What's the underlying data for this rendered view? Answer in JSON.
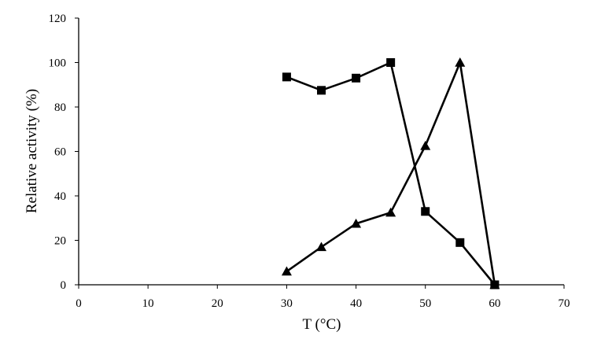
{
  "chart_data": {
    "type": "scatter",
    "title": "",
    "xlabel": "T (°C)",
    "ylabel": "Relative activity (%)",
    "xlim": [
      0,
      70
    ],
    "ylim": [
      0,
      120
    ],
    "xticks": [
      0,
      10,
      20,
      30,
      40,
      50,
      60,
      70
    ],
    "yticks": [
      0,
      20,
      40,
      60,
      80,
      100,
      120
    ],
    "grid": false,
    "legend": "none",
    "series": [
      {
        "marker": "square",
        "color": "#000000",
        "points": [
          {
            "x": 30,
            "y": 93.5
          },
          {
            "x": 35,
            "y": 87.5
          },
          {
            "x": 40,
            "y": 93
          },
          {
            "x": 45,
            "y": 100
          },
          {
            "x": 50,
            "y": 33
          },
          {
            "x": 55,
            "y": 19
          },
          {
            "x": 60,
            "y": 0
          }
        ]
      },
      {
        "marker": "triangle",
        "color": "#000000",
        "points": [
          {
            "x": 30,
            "y": 6
          },
          {
            "x": 35,
            "y": 17
          },
          {
            "x": 40,
            "y": 27.5
          },
          {
            "x": 45,
            "y": 32.5
          },
          {
            "x": 50,
            "y": 62.5
          },
          {
            "x": 55,
            "y": 100
          },
          {
            "x": 60,
            "y": 0
          }
        ]
      }
    ]
  }
}
